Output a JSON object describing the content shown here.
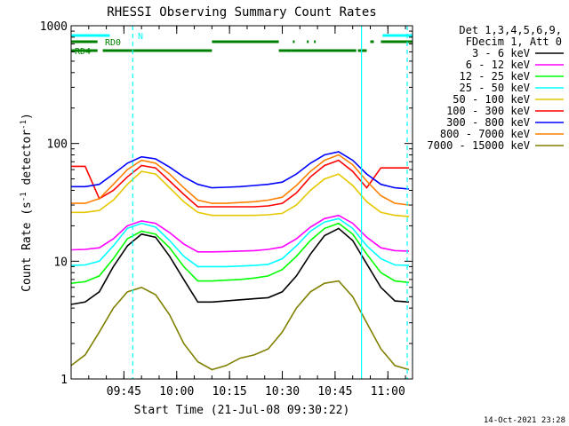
{
  "chart_data": {
    "type": "line",
    "title": "RHESSI Observing Summary Count Rates",
    "xlabel": "Start Time (21-Jul-08 09:30:22)",
    "ylabel": "Count Rate (s⁻¹ detector⁻¹)",
    "ylabel_main": "Count Rate (s",
    "ylabel_sup1": "-1",
    "ylabel_mid": " detector",
    "ylabel_sup2": "-1",
    "ylabel_end": ")",
    "y_scale": "log",
    "ylim": [
      1,
      1000
    ],
    "y_ticks": [
      {
        "value": 1,
        "label": "1"
      },
      {
        "value": 10,
        "label": "10"
      },
      {
        "value": 100,
        "label": "100"
      },
      {
        "value": 1000,
        "label": "1000"
      }
    ],
    "xlim_minutes": [
      0,
      97
    ],
    "x_ticks": [
      {
        "minute": 15,
        "label": "09:45"
      },
      {
        "minute": 30,
        "label": "10:00"
      },
      {
        "minute": 45,
        "label": "10:15"
      },
      {
        "minute": 60,
        "label": "10:30"
      },
      {
        "minute": 75,
        "label": "10:45"
      },
      {
        "minute": 90,
        "label": "11:00"
      }
    ],
    "legend_header": [
      "Det 1,3,4,5,6,9,",
      "FDecim 1, Att 0"
    ],
    "legend_position": "right",
    "series": [
      {
        "name": "3 - 6 keV",
        "color": "#000000",
        "x": [
          0,
          4,
          8,
          12,
          16,
          20,
          24,
          28,
          32,
          36,
          40,
          44,
          48,
          52,
          56,
          60,
          64,
          68,
          72,
          76,
          80,
          84,
          88,
          92,
          96
        ],
        "y": [
          4.3,
          4.5,
          5.5,
          9.0,
          13.5,
          17.0,
          16.0,
          11.0,
          7.0,
          4.5,
          4.5,
          4.6,
          4.7,
          4.8,
          4.9,
          5.5,
          7.5,
          11.5,
          16.5,
          19.0,
          15.0,
          9.5,
          6.0,
          4.6,
          4.5
        ]
      },
      {
        "name": "6 - 12 keV",
        "color": "#ff00ff",
        "x": [
          0,
          4,
          8,
          12,
          16,
          20,
          24,
          28,
          32,
          36,
          40,
          44,
          48,
          52,
          56,
          60,
          64,
          68,
          72,
          76,
          80,
          84,
          88,
          92,
          96
        ],
        "y": [
          12.5,
          12.6,
          13.0,
          15.5,
          20.0,
          22.0,
          21.0,
          17.5,
          14.0,
          12.0,
          12.0,
          12.1,
          12.2,
          12.3,
          12.6,
          13.2,
          15.5,
          19.5,
          23.0,
          24.5,
          21.0,
          16.0,
          13.0,
          12.3,
          12.2
        ]
      },
      {
        "name": "12 - 25 keV",
        "color": "#00ff00",
        "x": [
          0,
          4,
          8,
          12,
          16,
          20,
          24,
          28,
          32,
          36,
          40,
          44,
          48,
          52,
          56,
          60,
          64,
          68,
          72,
          76,
          80,
          84,
          88,
          92,
          96
        ],
        "y": [
          6.5,
          6.7,
          7.5,
          10.5,
          15.5,
          18.0,
          17.0,
          13.0,
          9.0,
          6.8,
          6.8,
          6.9,
          7.0,
          7.2,
          7.5,
          8.5,
          11.0,
          15.0,
          19.0,
          21.0,
          17.0,
          11.5,
          8.0,
          6.8,
          6.6
        ]
      },
      {
        "name": "25 - 50 keV",
        "color": "#00ffff",
        "x": [
          0,
          4,
          8,
          12,
          16,
          20,
          24,
          28,
          32,
          36,
          40,
          44,
          48,
          52,
          56,
          60,
          64,
          68,
          72,
          76,
          80,
          84,
          88,
          92,
          96
        ],
        "y": [
          9.2,
          9.3,
          10.0,
          13.5,
          19.0,
          21.0,
          19.5,
          15.0,
          11.0,
          9.0,
          9.0,
          9.0,
          9.1,
          9.2,
          9.4,
          10.5,
          13.5,
          18.0,
          21.5,
          23.0,
          19.0,
          13.5,
          10.5,
          9.3,
          9.2
        ]
      },
      {
        "name": "50 - 100 keV",
        "color": "#e6c800",
        "x": [
          0,
          4,
          8,
          12,
          16,
          20,
          24,
          28,
          32,
          36,
          40,
          44,
          48,
          52,
          56,
          60,
          64,
          68,
          72,
          76,
          80,
          84,
          88,
          92,
          96
        ],
        "y": [
          26.0,
          26.0,
          27.0,
          33.0,
          45.0,
          58.0,
          55.0,
          42.0,
          32.0,
          26.0,
          24.5,
          24.5,
          24.5,
          24.5,
          24.8,
          25.5,
          30.0,
          40.0,
          50.0,
          55.0,
          44.0,
          32.0,
          26.0,
          24.5,
          24.0
        ]
      },
      {
        "name": "100 - 300 keV",
        "color": "#ff0000",
        "x": [
          0,
          4,
          8,
          12,
          16,
          20,
          24,
          28,
          32,
          36,
          40,
          44,
          48,
          52,
          56,
          60,
          64,
          68,
          72,
          76,
          80,
          84,
          88,
          92,
          96
        ],
        "y": [
          64.0,
          64.0,
          34.0,
          40.0,
          52.0,
          65.0,
          62.0,
          48.0,
          37.0,
          29.0,
          29.0,
          29.0,
          29.0,
          29.0,
          29.5,
          31.0,
          38.0,
          52.0,
          65.0,
          72.0,
          58.0,
          42.0,
          62.0,
          62.0,
          62.0
        ]
      },
      {
        "name": "300 - 800 keV",
        "color": "#0000ff",
        "x": [
          0,
          4,
          8,
          12,
          16,
          20,
          24,
          28,
          32,
          36,
          40,
          44,
          48,
          52,
          56,
          60,
          64,
          68,
          72,
          76,
          80,
          84,
          88,
          92,
          96
        ],
        "y": [
          43.0,
          43.0,
          45.0,
          55.0,
          68.0,
          77.0,
          74.0,
          63.0,
          52.0,
          45.0,
          42.0,
          42.5,
          43.0,
          44.0,
          45.0,
          47.0,
          55.0,
          68.0,
          80.0,
          85.0,
          72.0,
          55.0,
          45.0,
          42.0,
          41.0
        ]
      },
      {
        "name": "800 - 7000 keV",
        "color": "#ff8000",
        "x": [
          0,
          4,
          8,
          12,
          16,
          20,
          24,
          28,
          32,
          36,
          40,
          44,
          48,
          52,
          56,
          60,
          64,
          68,
          72,
          76,
          80,
          84,
          88,
          92,
          96
        ],
        "y": [
          31.0,
          31.0,
          34.0,
          45.0,
          60.0,
          72.0,
          68.0,
          55.0,
          42.0,
          33.0,
          31.0,
          31.0,
          31.5,
          32.0,
          33.0,
          35.0,
          44.0,
          58.0,
          72.0,
          80.0,
          66.0,
          48.0,
          36.0,
          31.0,
          30.0
        ]
      },
      {
        "name": "7000 - 15000 keV",
        "color": "#808000",
        "x": [
          0,
          4,
          8,
          12,
          16,
          20,
          24,
          28,
          32,
          36,
          40,
          44,
          48,
          52,
          56,
          60,
          64,
          68,
          72,
          76,
          80,
          84,
          88,
          92,
          96
        ],
        "y": [
          1.3,
          1.6,
          2.5,
          4.0,
          5.5,
          6.0,
          5.2,
          3.5,
          2.0,
          1.4,
          1.2,
          1.3,
          1.5,
          1.6,
          1.8,
          2.5,
          4.0,
          5.5,
          6.5,
          6.8,
          5.0,
          3.0,
          1.8,
          1.3,
          1.2
        ]
      }
    ],
    "flag_rows": [
      {
        "name": "N",
        "color": "#00ffff",
        "segments": [
          [
            0,
            11
          ],
          [
            88.5,
            97
          ]
        ]
      },
      {
        "name": "RD0",
        "color": "#008000",
        "segments": [
          [
            0,
            7.5
          ],
          [
            40,
            59
          ],
          [
            63,
            63.5
          ],
          [
            67,
            67.5
          ],
          [
            69,
            69.5
          ],
          [
            85,
            86
          ],
          [
            88,
            97
          ]
        ]
      },
      {
        "name": "RD4",
        "color": "#008000",
        "segments": [
          [
            0,
            7.5
          ],
          [
            9,
            40
          ],
          [
            59,
            62.5
          ],
          [
            62.5,
            81
          ],
          [
            81.5,
            84
          ]
        ]
      }
    ],
    "vertical_markers": {
      "solid": [
        {
          "minute": 82.5,
          "color": "#00ffff"
        }
      ],
      "dashed": [
        {
          "minute": 17.5,
          "color": "#00ffff"
        },
        {
          "minute": 95.5,
          "color": "#00ffff"
        }
      ]
    },
    "footer_date": "14-Oct-2021 23:28"
  }
}
